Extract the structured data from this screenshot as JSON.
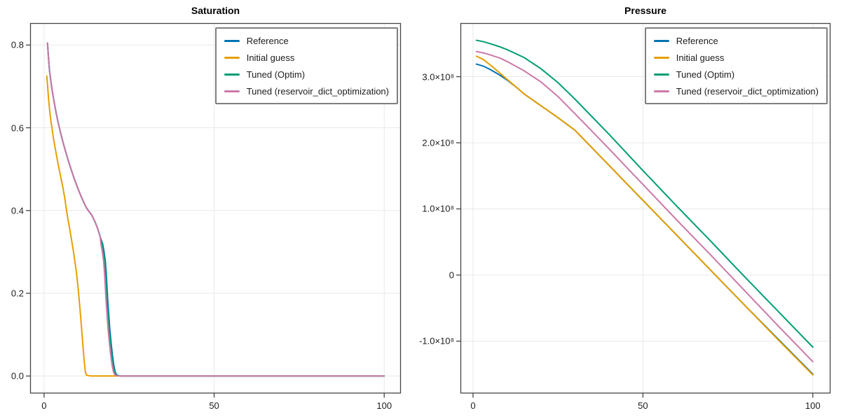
{
  "figure": {
    "background": "#ffffff"
  },
  "colors": {
    "grid": "#e9e9e9",
    "spine": "#454545",
    "tick": "#454545",
    "text": "#1c1c1c",
    "legend_border": "#7f7f7f",
    "series_blue": "#0072B2",
    "series_gold": "#E69F00",
    "series_green": "#009E73",
    "series_pink": "#CC79A7"
  },
  "legend": {
    "items": [
      "Reference",
      "Initial guess",
      "Tuned (Optim)",
      "Tuned (reservoir_dict_optimization)"
    ]
  },
  "chart_data": [
    {
      "type": "line",
      "title": "Saturation",
      "xlabel": "",
      "ylabel": "",
      "xlim": [
        -4.1,
        104.9
      ],
      "ylim": [
        -0.042,
        0.853
      ],
      "xticks": [
        0,
        50,
        100
      ],
      "xtick_labels": [
        "0",
        "50",
        "100"
      ],
      "yticks": [
        0.0,
        0.2,
        0.4,
        0.6,
        0.8
      ],
      "ytick_labels": [
        "0.0",
        "0.2",
        "0.4",
        "0.6",
        "0.8"
      ],
      "grid": true,
      "legend_position": "top-right",
      "series": [
        {
          "name": "Reference",
          "color": "#0072B2",
          "x": [
            1,
            1.3,
            1.6,
            2,
            2.5,
            3,
            3.5,
            4,
            4.5,
            5,
            5.5,
            6,
            6.5,
            7,
            7.5,
            8,
            8.5,
            9,
            9.5,
            10,
            10.5,
            11,
            11.5,
            12,
            12.5,
            13,
            14,
            14.5,
            15,
            15.5,
            16,
            16.5,
            17.2,
            17.6,
            18.0,
            18.3,
            18.5,
            18.7,
            19.0,
            19.3,
            19.7,
            20.1,
            20.5,
            20.9,
            21.3,
            21.8,
            22.7,
            24.2,
            30,
            50,
            100
          ],
          "y": [
            0.805,
            0.768,
            0.738,
            0.712,
            0.684,
            0.66,
            0.638,
            0.618,
            0.6,
            0.583,
            0.567,
            0.552,
            0.538,
            0.524,
            0.511,
            0.498,
            0.486,
            0.474,
            0.463,
            0.452,
            0.442,
            0.432,
            0.423,
            0.414,
            0.406,
            0.4,
            0.389,
            0.381,
            0.372,
            0.362,
            0.35,
            0.336,
            0.32,
            0.302,
            0.278,
            0.245,
            0.215,
            0.185,
            0.15,
            0.115,
            0.08,
            0.05,
            0.026,
            0.01,
            0.003,
            0.001,
            0,
            0,
            0,
            0,
            0
          ]
        },
        {
          "name": "Initial guess",
          "color": "#E69F00",
          "x": [
            0.8,
            1,
            1.3,
            1.6,
            2,
            2.3,
            2.7,
            3,
            3.5,
            4,
            4.5,
            5,
            5.5,
            6,
            6.6,
            7,
            7.5,
            8,
            8.5,
            9,
            9.5,
            10,
            10.5,
            11,
            11.4,
            11.8,
            12.1,
            12.4,
            13,
            14,
            20,
            50,
            100
          ],
          "y": [
            0.725,
            0.705,
            0.672,
            0.645,
            0.617,
            0.6,
            0.578,
            0.563,
            0.54,
            0.518,
            0.497,
            0.477,
            0.457,
            0.434,
            0.4,
            0.38,
            0.357,
            0.333,
            0.308,
            0.281,
            0.251,
            0.213,
            0.168,
            0.118,
            0.075,
            0.036,
            0.012,
            0.003,
            0.001,
            0,
            0,
            0,
            0
          ]
        },
        {
          "name": "Tuned (Optim)",
          "color": "#009E73",
          "x": [
            1,
            1.3,
            1.6,
            2,
            2.5,
            3,
            3.5,
            4,
            4.5,
            5,
            5.5,
            6,
            6.5,
            7,
            7.5,
            8,
            8.5,
            9,
            9.5,
            10,
            10.5,
            11,
            11.5,
            12,
            12.5,
            13,
            14,
            14.5,
            15,
            15.5,
            16,
            16.5,
            17,
            17.4,
            17.8,
            18.1,
            18.3,
            18.5,
            18.8,
            19.1,
            19.5,
            19.9,
            20.3,
            20.7,
            21.1,
            21.6,
            22.5,
            24,
            30,
            50,
            100
          ],
          "y": [
            0.805,
            0.768,
            0.738,
            0.712,
            0.684,
            0.66,
            0.638,
            0.618,
            0.6,
            0.583,
            0.567,
            0.552,
            0.538,
            0.524,
            0.511,
            0.498,
            0.486,
            0.474,
            0.463,
            0.452,
            0.442,
            0.432,
            0.423,
            0.414,
            0.406,
            0.4,
            0.389,
            0.381,
            0.372,
            0.362,
            0.35,
            0.336,
            0.32,
            0.302,
            0.278,
            0.245,
            0.215,
            0.185,
            0.15,
            0.115,
            0.08,
            0.05,
            0.026,
            0.01,
            0.003,
            0.001,
            0,
            0,
            0,
            0,
            0
          ]
        },
        {
          "name": "Tuned (reservoir_dict_optimization)",
          "color": "#CC79A7",
          "x": [
            1,
            1.3,
            1.6,
            2,
            2.5,
            3,
            3.5,
            4,
            4.5,
            5,
            5.5,
            6,
            6.5,
            7,
            7.5,
            8,
            8.5,
            9,
            9.5,
            10,
            10.5,
            11,
            11.5,
            12,
            12.5,
            13,
            14,
            14.5,
            15,
            15.5,
            16,
            16.5,
            16.7,
            17.1,
            17.5,
            17.8,
            18.0,
            18.2,
            18.5,
            18.8,
            19.2,
            19.6,
            20.0,
            20.4,
            20.8,
            21.3,
            22.2,
            24,
            30,
            50,
            100
          ],
          "y": [
            0.805,
            0.768,
            0.738,
            0.712,
            0.684,
            0.66,
            0.638,
            0.618,
            0.6,
            0.583,
            0.567,
            0.552,
            0.538,
            0.524,
            0.511,
            0.498,
            0.486,
            0.474,
            0.463,
            0.452,
            0.442,
            0.432,
            0.423,
            0.414,
            0.406,
            0.4,
            0.389,
            0.381,
            0.372,
            0.362,
            0.35,
            0.336,
            0.32,
            0.302,
            0.278,
            0.245,
            0.215,
            0.185,
            0.15,
            0.115,
            0.08,
            0.05,
            0.026,
            0.01,
            0.003,
            0.001,
            0,
            0,
            0,
            0,
            0
          ]
        }
      ]
    },
    {
      "type": "line",
      "title": "Pressure",
      "xlabel": "",
      "ylabel": "",
      "y_unit": "×10⁸",
      "xlim": [
        -3.7,
        105.2
      ],
      "ylim": [
        -1.79,
        3.81
      ],
      "xticks": [
        0,
        50,
        100
      ],
      "xtick_labels": [
        "0",
        "50",
        "100"
      ],
      "yticks": [
        -1,
        0,
        1,
        2,
        3
      ],
      "ytick_labels": [
        "-1.0×10⁸",
        "0",
        "1.0×10⁸",
        "2.0×10⁸",
        "3.0×10⁸"
      ],
      "grid": true,
      "legend_position": "top-right",
      "series": [
        {
          "name": "Reference",
          "color": "#0072B2",
          "x": [
            1,
            3,
            5,
            8,
            10,
            13,
            15,
            20,
            25,
            30,
            40,
            50,
            60,
            70,
            80,
            90,
            100
          ],
          "y": [
            3.19,
            3.16,
            3.11,
            3.02,
            2.95,
            2.83,
            2.74,
            2.56,
            2.38,
            2.19,
            1.66,
            1.13,
            0.6,
            0.07,
            -0.46,
            -0.98,
            -1.5
          ]
        },
        {
          "name": "Initial guess",
          "color": "#E69F00",
          "x": [
            1,
            3,
            5,
            8,
            10,
            13,
            15,
            20,
            25,
            30,
            40,
            50,
            60,
            70,
            80,
            90,
            100
          ],
          "y": [
            3.31,
            3.26,
            3.18,
            3.05,
            2.96,
            2.83,
            2.74,
            2.56,
            2.38,
            2.19,
            1.66,
            1.13,
            0.6,
            0.07,
            -0.46,
            -0.99,
            -1.51
          ]
        },
        {
          "name": "Tuned (Optim)",
          "color": "#009E73",
          "x": [
            1,
            3,
            5,
            8,
            10,
            15,
            20,
            25,
            30,
            40,
            50,
            60,
            70,
            80,
            90,
            100
          ],
          "y": [
            3.55,
            3.53,
            3.5,
            3.45,
            3.41,
            3.29,
            3.12,
            2.91,
            2.66,
            2.13,
            1.58,
            1.04,
            0.51,
            -0.03,
            -0.56,
            -1.09
          ]
        },
        {
          "name": "Tuned (reservoir_dict_optimization)",
          "color": "#CC79A7",
          "x": [
            1,
            3,
            5,
            8,
            10,
            15,
            20,
            25,
            30,
            40,
            50,
            60,
            70,
            80,
            90,
            100
          ],
          "y": [
            3.38,
            3.36,
            3.33,
            3.28,
            3.23,
            3.09,
            2.92,
            2.7,
            2.44,
            1.91,
            1.37,
            0.83,
            0.3,
            -0.24,
            -0.78,
            -1.31
          ]
        }
      ]
    }
  ]
}
